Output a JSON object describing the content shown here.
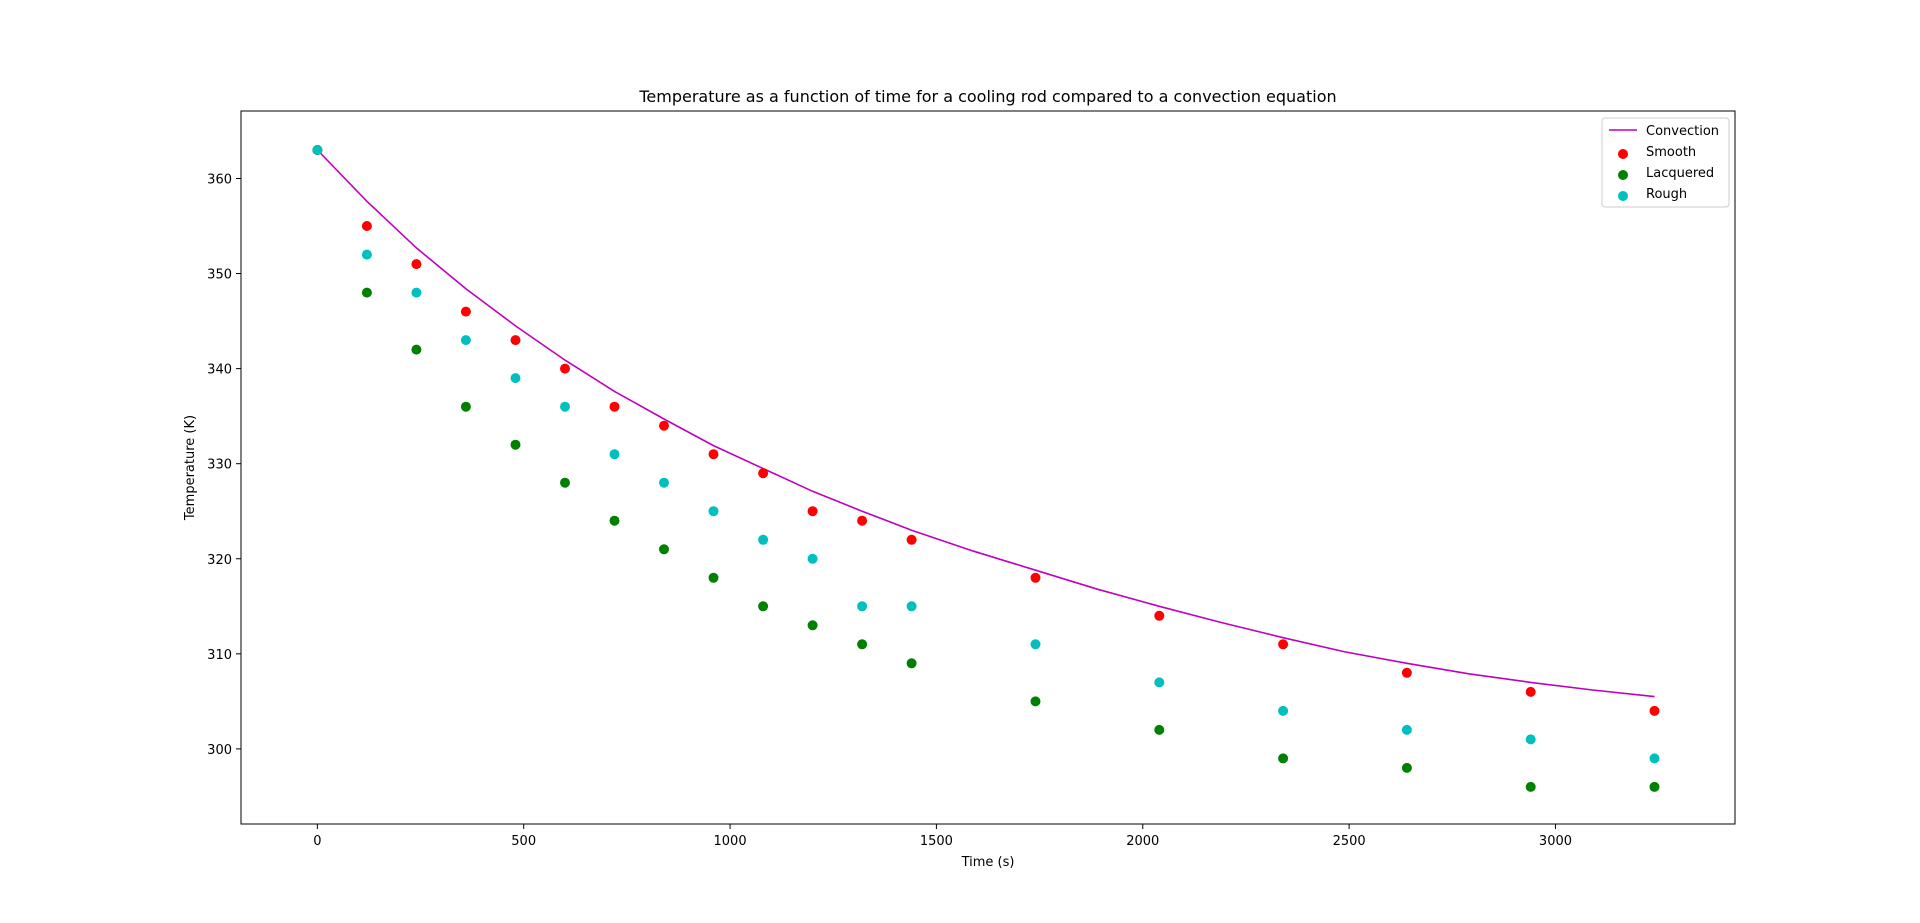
{
  "chart_data": {
    "type": "scatter",
    "title": "Temperature as a function of time for a cooling rod compared to a convection equation",
    "xlabel": "Time (s)",
    "ylabel": "Temperature (K)",
    "xlim": [
      -185,
      3435
    ],
    "ylim": [
      292.1,
      367.1
    ],
    "xticks": [
      "0",
      "500",
      "1000",
      "1500",
      "2000",
      "2500",
      "3000"
    ],
    "yticks": [
      "300",
      "310",
      "320",
      "330",
      "340",
      "350",
      "360"
    ],
    "grid": false,
    "legend_position": "upper right",
    "x": [
      0,
      120,
      240,
      360,
      480,
      600,
      720,
      840,
      960,
      1080,
      1200,
      1320,
      1440,
      1740,
      2040,
      2340,
      2640,
      2940,
      3240
    ],
    "series": [
      {
        "name": "Convection",
        "kind": "line",
        "color": "#bf00bf",
        "x": [
          0,
          120,
          240,
          360,
          480,
          600,
          720,
          840,
          960,
          1080,
          1200,
          1320,
          1440,
          1590,
          1740,
          1890,
          2040,
          2190,
          2340,
          2490,
          2640,
          2790,
          2940,
          3090,
          3240
        ],
        "values": [
          363.0,
          357.6,
          352.7,
          348.4,
          344.5,
          340.9,
          337.6,
          334.7,
          331.9,
          329.5,
          327.1,
          325.0,
          323.0,
          320.8,
          318.8,
          316.8,
          315.0,
          313.3,
          311.7,
          310.2,
          309.0,
          307.9,
          307.0,
          306.2,
          305.5
        ]
      },
      {
        "name": "Smooth",
        "kind": "scatter",
        "color": "#ff0000",
        "values": [
          363,
          355,
          351,
          346,
          343,
          340,
          336,
          334,
          331,
          329,
          325,
          324,
          322,
          318,
          314,
          311,
          308,
          306,
          304
        ]
      },
      {
        "name": "Lacquered",
        "kind": "scatter",
        "color": "#008000",
        "values": [
          363,
          348,
          342,
          336,
          332,
          328,
          324,
          321,
          318,
          315,
          313,
          311,
          309,
          305,
          302,
          299,
          298,
          296,
          296
        ]
      },
      {
        "name": "Rough",
        "kind": "scatter",
        "color": "#00bfbf",
        "values": [
          363,
          352,
          348,
          343,
          339,
          336,
          331,
          328,
          325,
          322,
          320,
          315,
          315,
          311,
          307,
          304,
          302,
          301,
          299
        ]
      }
    ]
  }
}
